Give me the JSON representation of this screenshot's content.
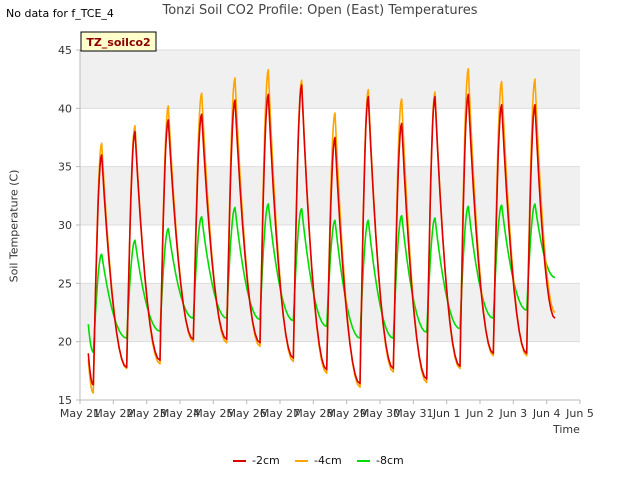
{
  "page": {
    "no_data_text": "No data for f_TCE_4",
    "title": "Tonzi Soil CO2 Profile: Open (East) Temperatures"
  },
  "chart_data": {
    "type": "line",
    "title": "Tonzi Soil CO2 Profile: Open (East) Temperatures",
    "xlabel": "Time",
    "ylabel": "Soil Temperature (C)",
    "ylim": [
      15,
      45
    ],
    "yticks": [
      15,
      20,
      25,
      30,
      35,
      40,
      45
    ],
    "xlim": [
      0,
      15
    ],
    "xtick_labels": [
      "May 21",
      "May 22",
      "May 23",
      "May 24",
      "May 25",
      "May 26",
      "May 27",
      "May 28",
      "May 29",
      "May 30",
      "May 31",
      "Jun 1",
      "Jun 2",
      "Jun 3",
      "Jun 4",
      "Jun 5"
    ],
    "grid": true,
    "legend_position": "bottom",
    "annotation_box": "TZ_soilco2",
    "x_start": 0.25,
    "x_end": 14.25,
    "peak_day_offset": 0.6,
    "series": [
      {
        "name": "-2cm",
        "color": "#dd0000",
        "start_value": 19.0,
        "daily_min": [
          16.3,
          17.8,
          18.4,
          20.2,
          20.2,
          19.9,
          18.6,
          17.6,
          16.4,
          17.7,
          16.8,
          17.9,
          19.0,
          19.0
        ],
        "daily_max": [
          36.0,
          38.0,
          39.0,
          39.5,
          40.7,
          41.2,
          42.0,
          37.5,
          41.0,
          38.7,
          41.0,
          41.2,
          40.3,
          40.3
        ],
        "end_value": 22.0
      },
      {
        "name": "-4cm",
        "color": "#ffa500",
        "start_value": 18.5,
        "daily_min": [
          15.6,
          17.7,
          18.1,
          20.0,
          19.9,
          19.6,
          18.3,
          17.3,
          16.1,
          17.4,
          16.5,
          17.7,
          18.8,
          18.8
        ],
        "daily_max": [
          37.0,
          38.5,
          40.2,
          41.3,
          42.6,
          43.3,
          42.4,
          39.6,
          41.6,
          40.8,
          41.4,
          43.4,
          42.3,
          42.5
        ],
        "end_value": 22.5
      },
      {
        "name": "-8cm",
        "color": "#00dd00",
        "start_value": 21.5,
        "daily_min": [
          19.1,
          20.3,
          20.9,
          22.0,
          22.0,
          21.9,
          21.8,
          21.3,
          20.3,
          20.3,
          20.8,
          21.1,
          22.0,
          22.7
        ],
        "daily_max": [
          27.5,
          28.7,
          29.7,
          30.7,
          31.5,
          31.8,
          31.4,
          30.4,
          30.4,
          30.8,
          30.6,
          31.6,
          31.7,
          31.8
        ],
        "end_value": 25.5
      }
    ]
  }
}
